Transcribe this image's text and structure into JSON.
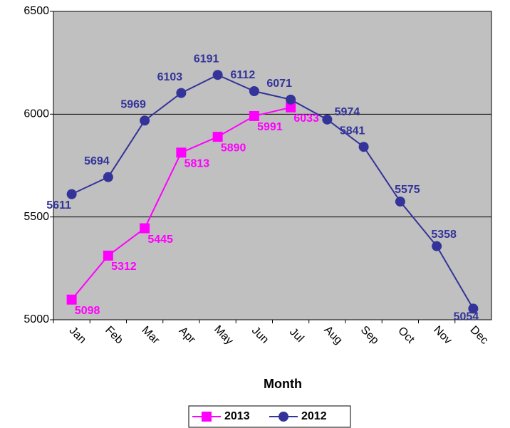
{
  "chart_data": {
    "type": "line",
    "x_label": "Month",
    "categories": [
      "Jan",
      "Feb",
      "Mar",
      "Apr",
      "May",
      "Jun",
      "Jul",
      "Aug",
      "Sep",
      "Oct",
      "Nov",
      "Dec"
    ],
    "series": [
      {
        "name": "2013",
        "color": "#ff00ff",
        "marker": "square",
        "values": [
          5098,
          5312,
          5445,
          5813,
          5890,
          5991,
          6033,
          null,
          null,
          null,
          null,
          null
        ]
      },
      {
        "name": "2012",
        "color": "#333399",
        "marker": "circle",
        "values": [
          5611,
          5694,
          5969,
          6103,
          6191,
          6112,
          6071,
          5974,
          5841,
          5575,
          5358,
          5054
        ]
      }
    ],
    "ylim": [
      5000,
      6500
    ],
    "yticks": [
      5000,
      5500,
      6000,
      6500
    ],
    "grid": true,
    "legend": "bottom",
    "plot_background": "#c0c0c0"
  }
}
